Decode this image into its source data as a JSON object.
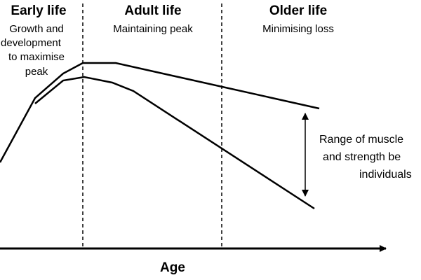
{
  "phases": [
    {
      "title": "Early life",
      "subtitle": [
        "Growth and",
        "development",
        "to maximise",
        "peak"
      ]
    },
    {
      "title": "Adult life",
      "subtitle": [
        "Maintaining peak"
      ]
    },
    {
      "title": "Older life",
      "subtitle": [
        "Minimising loss"
      ]
    }
  ],
  "range_label": [
    "Range of muscle",
    "and strength be",
    "individuals"
  ],
  "x_axis_label": "Age"
}
